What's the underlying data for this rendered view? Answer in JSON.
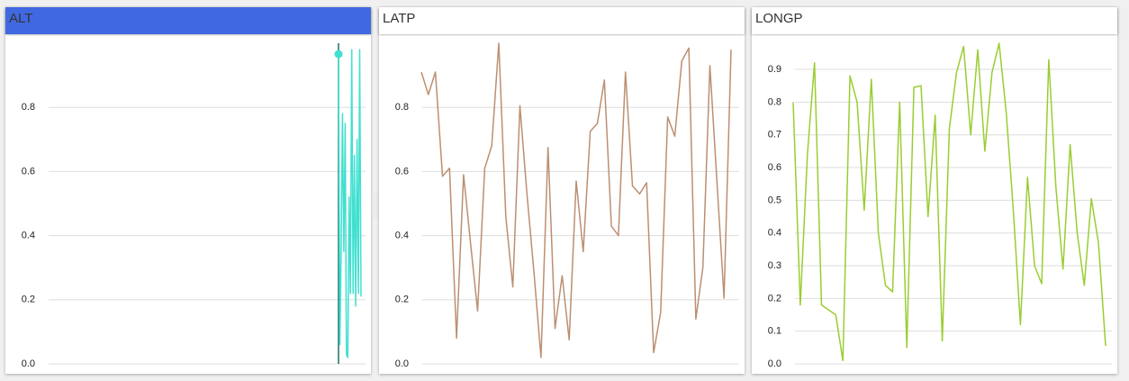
{
  "chart_data": [
    {
      "type": "line",
      "title": "ALT",
      "color": "#40e0d0",
      "ylim": [
        0,
        1.0
      ],
      "yticks": [
        {
          "value": 0,
          "label": "0.0"
        },
        0.2,
        0.4,
        0.6,
        0.8
      ],
      "grid": true,
      "tooltip": "ALT: 0.966",
      "values": [
        0.966,
        0.06,
        0.35,
        0.78,
        0.35,
        0.75,
        0.03,
        0.02,
        0.52,
        0.22,
        0.98,
        0.22,
        0.65,
        0.18,
        0.7,
        0.22,
        0.98,
        0.21
      ]
    },
    {
      "type": "line",
      "title": "LATP",
      "color": "#bc8f72",
      "ylim": [
        0,
        1.0
      ],
      "yticks": [
        {
          "value": 0,
          "label": "0.0"
        },
        0.2,
        0.4,
        0.6,
        0.8
      ],
      "grid": true,
      "values": [
        0.91,
        0.84,
        0.91,
        0.585,
        0.61,
        0.08,
        0.59,
        0.375,
        0.165,
        0.61,
        0.68,
        1.0,
        0.46,
        0.24,
        0.805,
        0.53,
        0.285,
        0.02,
        0.675,
        0.11,
        0.275,
        0.075,
        0.57,
        0.35,
        0.725,
        0.75,
        0.885,
        0.43,
        0.4,
        0.91,
        0.555,
        0.53,
        0.565,
        0.035,
        0.16,
        0.77,
        0.71,
        0.945,
        0.985,
        0.14,
        0.3,
        0.93,
        0.565,
        0.205,
        0.98
      ]
    },
    {
      "type": "line",
      "title": "LONGP",
      "color": "#9acd32",
      "ylim": [
        0,
        0.98
      ],
      "yticks": [
        {
          "value": 0,
          "label": "0.0"
        },
        0.1,
        0.2,
        0.3,
        0.4,
        0.5,
        0.6,
        0.7,
        0.8,
        0.9
      ],
      "grid": true,
      "values": [
        0.8,
        0.18,
        0.64,
        0.92,
        0.18,
        0.165,
        0.15,
        0.01,
        0.88,
        0.8,
        0.47,
        0.87,
        0.4,
        0.24,
        0.22,
        0.8,
        0.05,
        0.845,
        0.85,
        0.45,
        0.76,
        0.07,
        0.72,
        0.89,
        0.97,
        0.7,
        0.96,
        0.65,
        0.89,
        0.98,
        0.77,
        0.47,
        0.12,
        0.57,
        0.3,
        0.245,
        0.93,
        0.54,
        0.29,
        0.67,
        0.4,
        0.24,
        0.505,
        0.37,
        0.055
      ]
    }
  ]
}
